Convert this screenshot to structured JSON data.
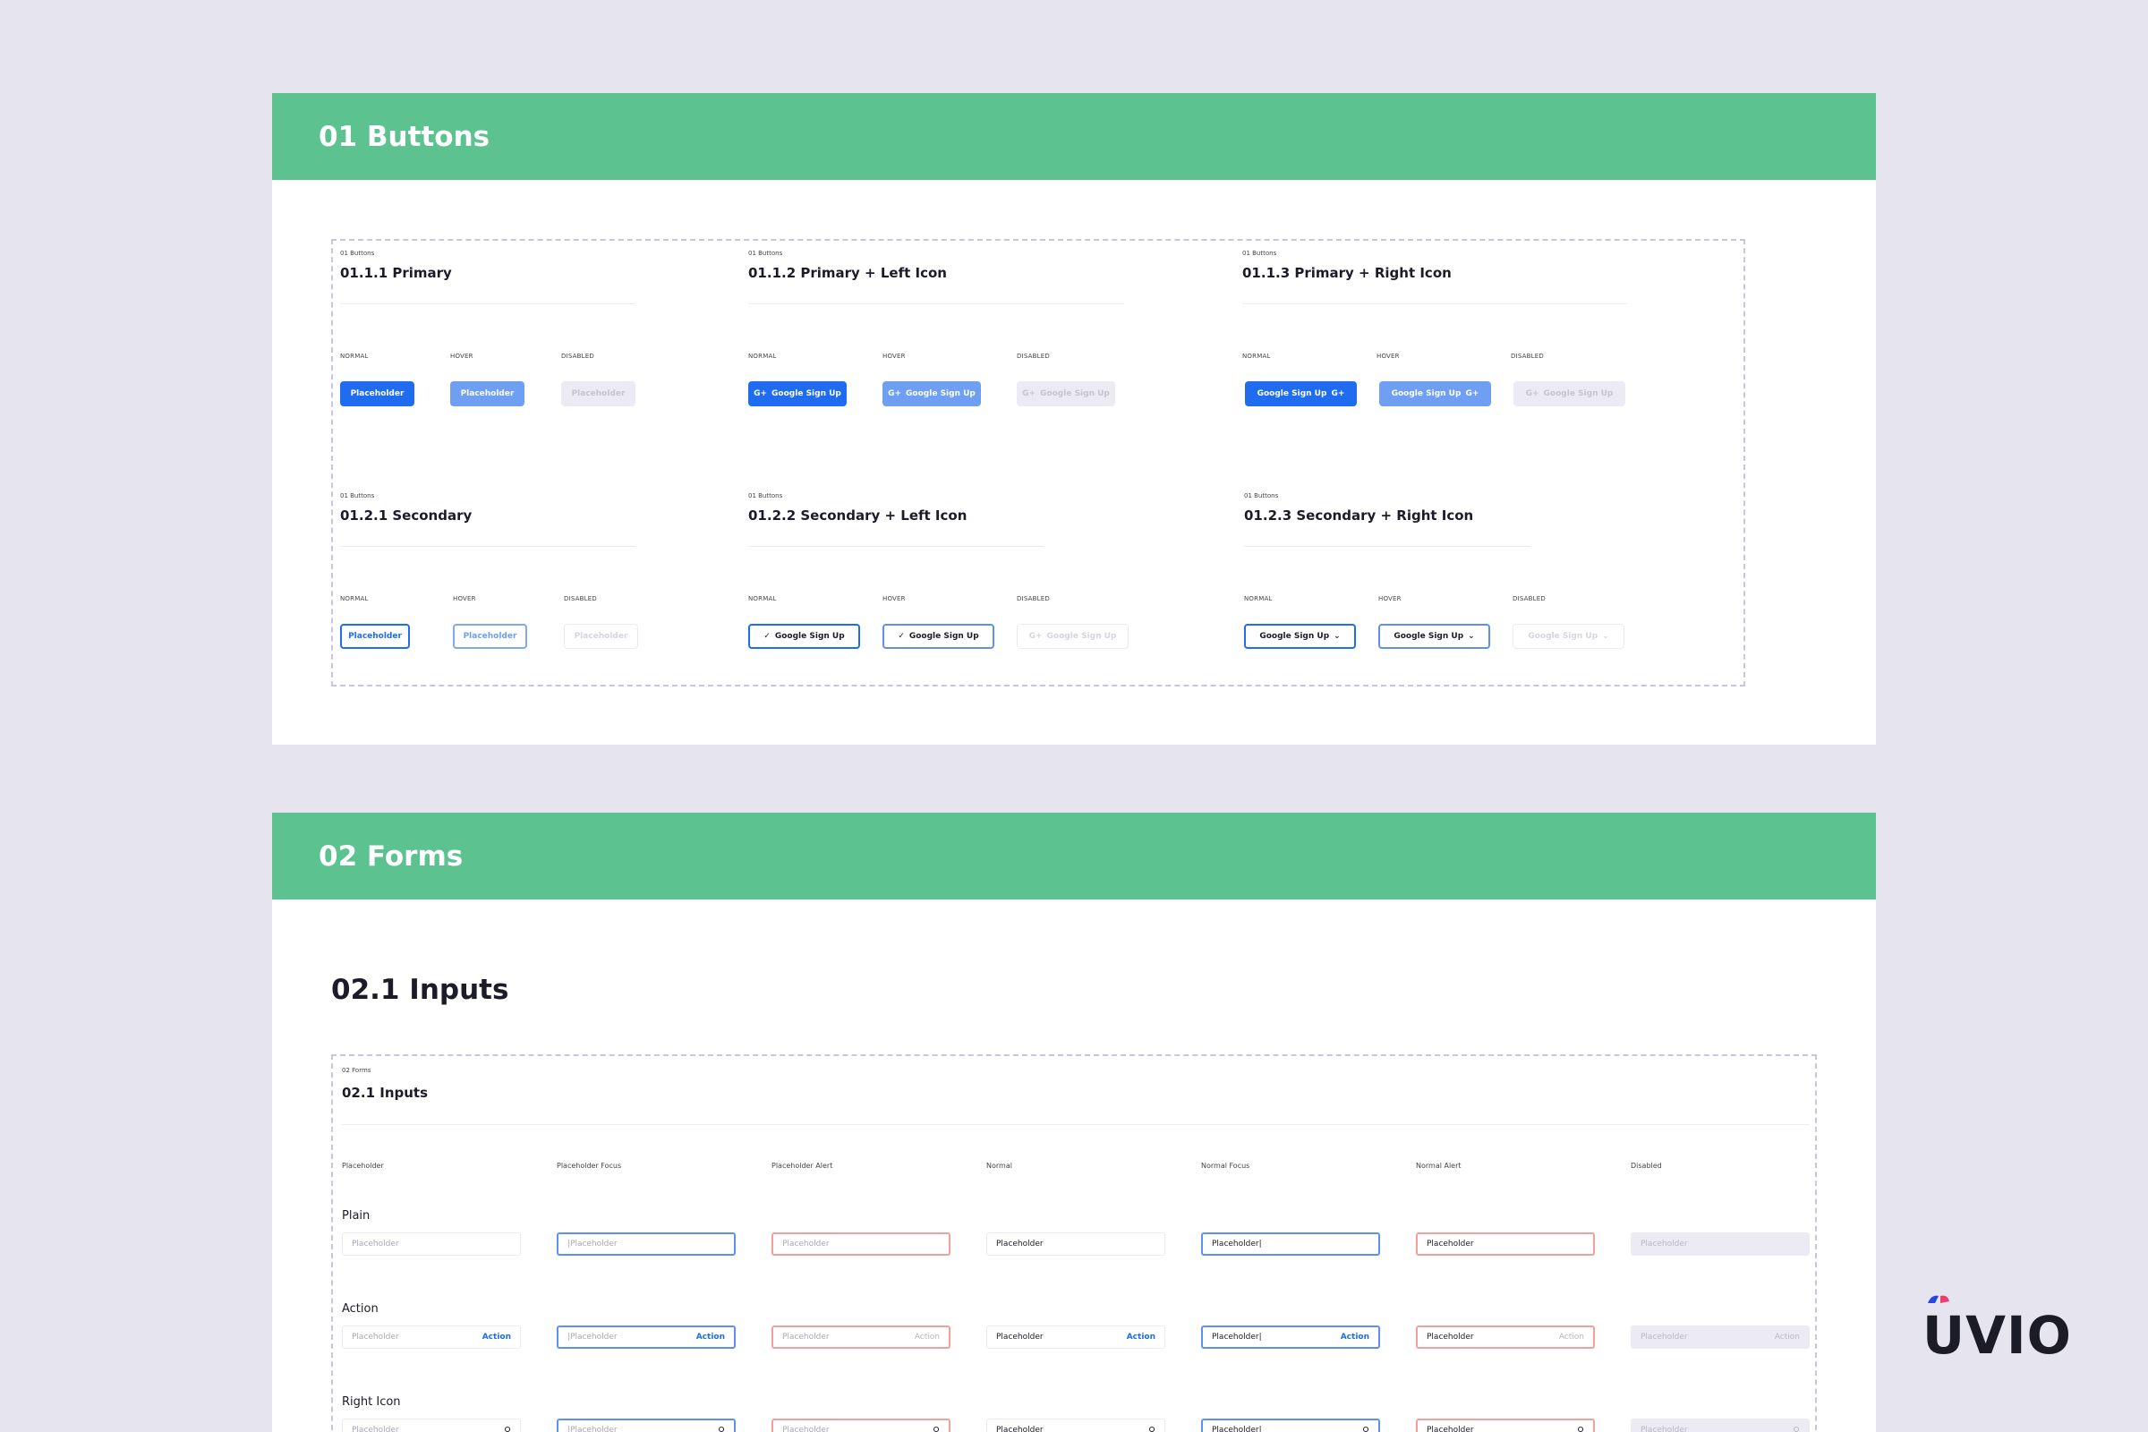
{
  "buttons_section": {
    "header": "01 Buttons",
    "groups": [
      {
        "tag": "01 Buttons",
        "title": "01.1.1 Primary"
      },
      {
        "tag": "01 Buttons",
        "title": "01.1.2 Primary + Left Icon"
      },
      {
        "tag": "01 Buttons",
        "title": "01.1.3 Primary + Right Icon"
      },
      {
        "tag": "01 Buttons",
        "title": "01.2.1 Secondary"
      },
      {
        "tag": "01 Buttons",
        "title": "01.2.2 Secondary + Left Icon"
      },
      {
        "tag": "01 Buttons",
        "title": "01.2.3 Secondary  + Right Icon"
      }
    ],
    "states": {
      "normal": "NORMAL",
      "hover": "HOVER",
      "disabled": "DISABLED"
    },
    "placeholder_label": "Placeholder",
    "google_label": "Google Sign Up",
    "icons": {
      "google": "G+",
      "check": "✓",
      "chevron": "⌄"
    }
  },
  "forms_section": {
    "header": "02 Forms",
    "subtitle": "02.1 Inputs",
    "frame_tag": "02 Forms",
    "frame_title": "02.1 Inputs",
    "columns": [
      "Placeholder",
      "Placeholder Focus",
      "Placeholder Alert",
      "Normal",
      "Normal Focus",
      "Normal Alert",
      "Disabled"
    ],
    "rows": [
      "Plain",
      "Action",
      "Right Icon"
    ],
    "placeholder_text": "Placeholder",
    "placeholder_cursor": "|Placeholder",
    "normal_text": "Placeholder",
    "normal_cursor": "Placeholder|",
    "action_label": "Action"
  },
  "brand": {
    "logo_text": "UVIO",
    "colors": {
      "blue": "#2447e6",
      "pink": "#f03c6a"
    }
  },
  "colors": {
    "green_header": "#5bc290",
    "primary": "#1f6cf0",
    "alert": "#f2a19a",
    "background": "#e6e4ef"
  }
}
